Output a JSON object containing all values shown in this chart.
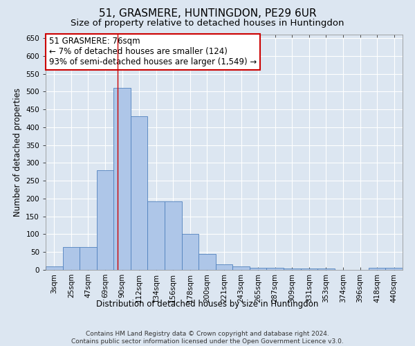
{
  "title": "51, GRASMERE, HUNTINGDON, PE29 6UR",
  "subtitle": "Size of property relative to detached houses in Huntingdon",
  "xlabel": "Distribution of detached houses by size in Huntingdon",
  "ylabel": "Number of detached properties",
  "footer_line1": "Contains HM Land Registry data © Crown copyright and database right 2024.",
  "footer_line2": "Contains public sector information licensed under the Open Government Licence v3.0.",
  "categories": [
    "3sqm",
    "25sqm",
    "47sqm",
    "69sqm",
    "90sqm",
    "112sqm",
    "134sqm",
    "156sqm",
    "178sqm",
    "200sqm",
    "221sqm",
    "243sqm",
    "265sqm",
    "287sqm",
    "309sqm",
    "331sqm",
    "353sqm",
    "374sqm",
    "396sqm",
    "418sqm",
    "440sqm"
  ],
  "values": [
    10,
    65,
    65,
    280,
    510,
    430,
    193,
    193,
    100,
    45,
    15,
    10,
    6,
    5,
    4,
    3,
    3,
    0,
    0,
    5,
    5
  ],
  "bar_color": "#aec6e8",
  "bar_edge_color": "#4f81bd",
  "background_color": "#dce6f1",
  "annotation_box_text": "51 GRASMERE: 76sqm\n← 7% of detached houses are smaller (124)\n93% of semi-detached houses are larger (1,549) →",
  "annotation_box_color": "#ffffff",
  "annotation_box_edge_color": "#cc0000",
  "red_line_x": 3.75,
  "ylim": [
    0,
    660
  ],
  "yticks": [
    0,
    50,
    100,
    150,
    200,
    250,
    300,
    350,
    400,
    450,
    500,
    550,
    600,
    650
  ],
  "grid_color": "#ffffff",
  "title_fontsize": 11,
  "subtitle_fontsize": 9.5,
  "axis_label_fontsize": 8.5,
  "tick_fontsize": 7.5,
  "annotation_fontsize": 8.5,
  "footer_fontsize": 6.5
}
